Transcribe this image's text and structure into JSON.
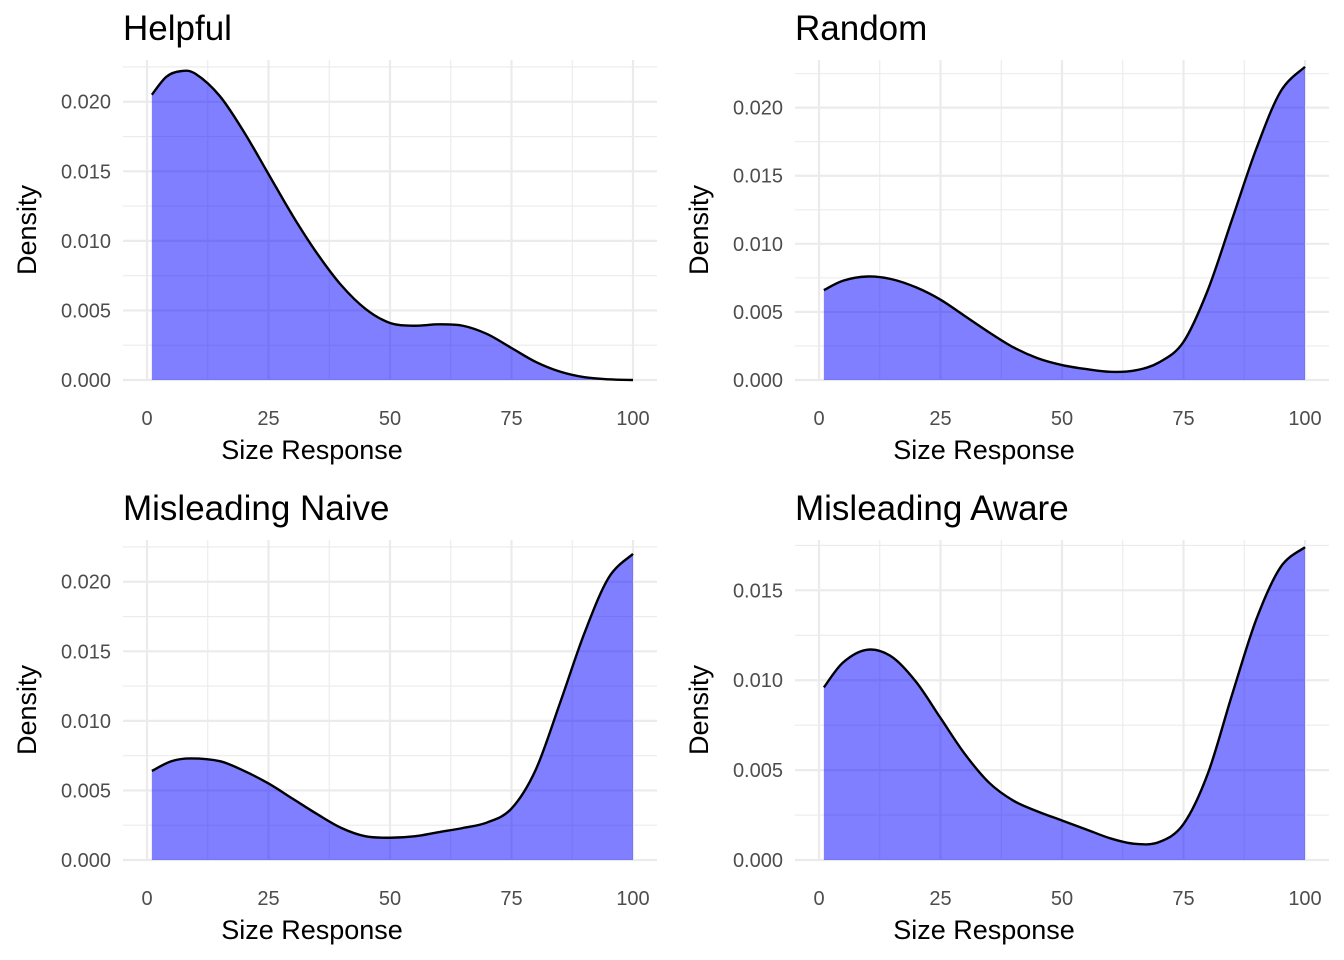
{
  "chart_data": [
    {
      "type": "area",
      "title": "Helpful",
      "xlabel": "Size Response",
      "ylabel": "Density",
      "xlim": [
        0,
        100
      ],
      "ylim": [
        0,
        0.023
      ],
      "x_ticks": [
        "0",
        "25",
        "50",
        "75",
        "100"
      ],
      "y_ticks": [
        "0.000",
        "0.005",
        "0.010",
        "0.015",
        "0.020"
      ],
      "fill_color": "#0000ff",
      "grid": true,
      "x": [
        1,
        4,
        7,
        10,
        15,
        20,
        25,
        30,
        35,
        40,
        45,
        50,
        55,
        60,
        65,
        70,
        75,
        80,
        85,
        90,
        95,
        100
      ],
      "y": [
        0.0205,
        0.0218,
        0.0222,
        0.022,
        0.0204,
        0.0178,
        0.0148,
        0.0118,
        0.0091,
        0.0068,
        0.0051,
        0.0041,
        0.0039,
        0.004,
        0.0039,
        0.0033,
        0.0023,
        0.0013,
        0.0006,
        0.0002,
        5e-05,
        0.0
      ]
    },
    {
      "type": "area",
      "title": "Random",
      "xlabel": "Size Response",
      "ylabel": "Density",
      "xlim": [
        0,
        100
      ],
      "ylim": [
        0,
        0.0235
      ],
      "x_ticks": [
        "0",
        "25",
        "50",
        "75",
        "100"
      ],
      "y_ticks": [
        "0.000",
        "0.005",
        "0.010",
        "0.015",
        "0.020"
      ],
      "fill_color": "#0000ff",
      "grid": true,
      "x": [
        1,
        5,
        10,
        15,
        20,
        25,
        30,
        35,
        40,
        45,
        50,
        55,
        60,
        65,
        70,
        75,
        80,
        85,
        90,
        95,
        100
      ],
      "y": [
        0.0066,
        0.0073,
        0.0076,
        0.0074,
        0.0068,
        0.0059,
        0.0047,
        0.0035,
        0.0024,
        0.0016,
        0.0011,
        0.0008,
        0.0006,
        0.0007,
        0.0013,
        0.0028,
        0.0066,
        0.0118,
        0.017,
        0.0212,
        0.023
      ]
    },
    {
      "type": "area",
      "title": "Misleading Naive",
      "xlabel": "Size Response",
      "ylabel": "Density",
      "xlim": [
        0,
        100
      ],
      "ylim": [
        0,
        0.023
      ],
      "x_ticks": [
        "0",
        "25",
        "50",
        "75",
        "100"
      ],
      "y_ticks": [
        "0.000",
        "0.005",
        "0.010",
        "0.015",
        "0.020"
      ],
      "fill_color": "#0000ff",
      "grid": true,
      "x": [
        1,
        5,
        9,
        15,
        20,
        25,
        30,
        35,
        40,
        45,
        50,
        55,
        60,
        65,
        70,
        75,
        80,
        85,
        90,
        95,
        100
      ],
      "y": [
        0.0064,
        0.0071,
        0.0073,
        0.0071,
        0.0064,
        0.0055,
        0.0044,
        0.0033,
        0.0023,
        0.0017,
        0.0016,
        0.0017,
        0.002,
        0.0023,
        0.0027,
        0.0037,
        0.0065,
        0.0113,
        0.0163,
        0.0203,
        0.022
      ]
    },
    {
      "type": "area",
      "title": "Misleading Aware",
      "xlabel": "Size Response",
      "ylabel": "Density",
      "xlim": [
        0,
        100
      ],
      "ylim": [
        0,
        0.0178
      ],
      "x_ticks": [
        "0",
        "25",
        "50",
        "75",
        "100"
      ],
      "y_ticks": [
        "0.000",
        "0.005",
        "0.010",
        "0.015"
      ],
      "fill_color": "#0000ff",
      "grid": true,
      "x": [
        1,
        5,
        10,
        15,
        20,
        25,
        30,
        35,
        40,
        45,
        50,
        55,
        60,
        65,
        70,
        75,
        80,
        85,
        90,
        95,
        100
      ],
      "y": [
        0.0096,
        0.011,
        0.0117,
        0.0113,
        0.0099,
        0.0079,
        0.0059,
        0.0043,
        0.0033,
        0.0027,
        0.0022,
        0.0017,
        0.0012,
        0.0009,
        0.001,
        0.002,
        0.0048,
        0.0092,
        0.0134,
        0.0163,
        0.0174
      ]
    }
  ]
}
